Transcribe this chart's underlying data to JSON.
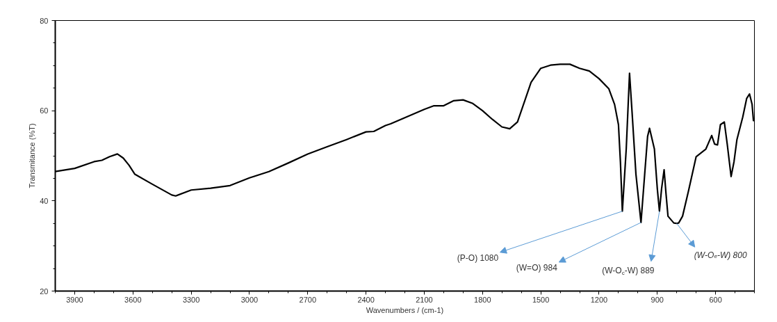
{
  "chart_data": {
    "type": "line",
    "xlabel": "Wavenumbers / (cm-1)",
    "ylabel": "Transmitance (%T)",
    "xlim": [
      4000,
      400
    ],
    "ylim": [
      20,
      80
    ],
    "xticks": [
      3900,
      3600,
      3300,
      3000,
      2700,
      2400,
      2100,
      1800,
      1500,
      1200,
      900,
      600
    ],
    "yticks": [
      20,
      40,
      60,
      80
    ],
    "grid": false,
    "marker": "none",
    "line_style": "solid",
    "series": [
      {
        "color": "#000000",
        "x": [
          4000,
          3900,
          3800,
          3760,
          3720,
          3680,
          3650,
          3620,
          3590,
          3500,
          3400,
          3380,
          3300,
          3200,
          3100,
          3000,
          2900,
          2800,
          2700,
          2600,
          2500,
          2400,
          2360,
          2300,
          2273,
          2100,
          2050,
          2000,
          1950,
          1900,
          1850,
          1800,
          1750,
          1700,
          1660,
          1620,
          1580,
          1550,
          1500,
          1450,
          1400,
          1350,
          1300,
          1250,
          1200,
          1150,
          1120,
          1100,
          1090,
          1080,
          1060,
          1043,
          1030,
          1010,
          984,
          965,
          950,
          940,
          915,
          900,
          889,
          878,
          865,
          855,
          845,
          815,
          800,
          790,
          770,
          740,
          700,
          650,
          620,
          605,
          590,
          575,
          555,
          540,
          520,
          505,
          490,
          460,
          440,
          425,
          412,
          405,
          400
        ],
        "values": [
          46.5,
          47.2,
          48.7,
          49.0,
          49.8,
          50.4,
          49.5,
          47.9,
          45.9,
          43.7,
          41.3,
          41.1,
          42.4,
          42.8,
          43.4,
          45.1,
          46.5,
          48.4,
          50.4,
          52.0,
          53.6,
          55.3,
          55.4,
          56.7,
          57.1,
          60.3,
          61.1,
          61.1,
          62.2,
          62.4,
          61.6,
          60.0,
          58.1,
          56.4,
          56.0,
          57.5,
          62.5,
          66.3,
          69.4,
          70.1,
          70.3,
          70.3,
          69.4,
          68.8,
          67.1,
          64.9,
          61.4,
          56.9,
          48.7,
          37.7,
          51.5,
          68.3,
          59.7,
          45.9,
          35.2,
          45.9,
          54.3,
          56.1,
          51.5,
          42.7,
          37.7,
          42.7,
          46.9,
          41.5,
          36.6,
          35.1,
          35.0,
          35.1,
          36.6,
          42.1,
          49.8,
          51.5,
          54.5,
          52.6,
          52.4,
          56.9,
          57.5,
          52.6,
          45.4,
          48.7,
          53.6,
          58.6,
          62.7,
          63.7,
          61.4,
          57.8,
          57.8
        ]
      }
    ],
    "annotations": [
      {
        "text": "(P-O) 1080",
        "x": 1080,
        "y": 37.7
      },
      {
        "text": "(W=O) 984",
        "x": 984,
        "y": 35.2
      },
      {
        "text": "(W-O$_{c}$-W) 889",
        "x": 889,
        "y": 37.7
      },
      {
        "text": "(W-O$_{e}$-W) 800",
        "x": 800,
        "y": 35.0
      }
    ]
  }
}
